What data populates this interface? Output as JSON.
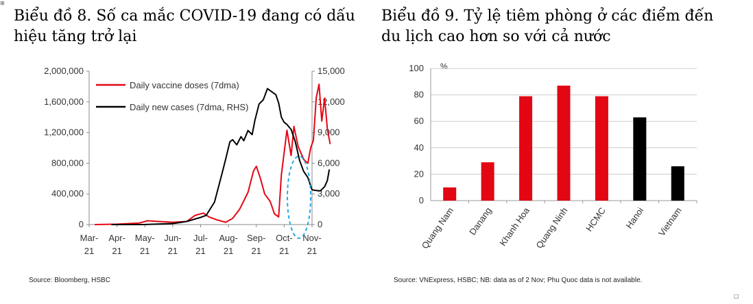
{
  "titles": {
    "left": "Biểu đồ 8. Số ca mắc COVID-19 đang có dấu\nhiệu tăng trở lại",
    "right": "Biểu đồ 9. Tỷ lệ tiêm phòng ở các điểm đến\ndu lịch cao hơn so với cả nước"
  },
  "corner_marks": {
    "top_left": "⊞",
    "bottom_right": "□"
  },
  "colors": {
    "vaccine": "#e30613",
    "cases": "#000000",
    "highlight": "#29a8e0",
    "bar_red": "#e30613",
    "bar_black": "#000000",
    "grid": "#cccccc"
  },
  "chart_data": [
    {
      "type": "line",
      "title": "",
      "x_ticks": [
        "Mar-\n21",
        "Apr-\n21",
        "May-\n21",
        "Jun-\n21",
        "Jul-\n21",
        "Aug-\n21",
        "Sep-\n21",
        "Oct-\n21",
        "Nov-\n21"
      ],
      "y_left": {
        "min": 0,
        "max": 2000000,
        "ticks": [
          "2,000,000",
          "1,600,000",
          "1,200,000",
          "800,000",
          "400,000",
          "0"
        ]
      },
      "y_right": {
        "min": 0,
        "max": 15000,
        "ticks": [
          "15,000",
          "12,000",
          "9,000",
          "6,000",
          "3,000",
          "0"
        ]
      },
      "legend": {
        "placement": "top-left",
        "entries": [
          "Daily vaccine doses (7dma)",
          "Daily new cases (7dma, RHS)"
        ]
      },
      "series": [
        {
          "name": "Daily vaccine doses (7dma)",
          "axis": "left",
          "points": [
            [
              0.2,
              0
            ],
            [
              1.0,
              5000
            ],
            [
              1.8,
              20000
            ],
            [
              2.1,
              50000
            ],
            [
              2.5,
              40000
            ],
            [
              3.0,
              30000
            ],
            [
              3.5,
              40000
            ],
            [
              3.8,
              120000
            ],
            [
              4.1,
              150000
            ],
            [
              4.3,
              100000
            ],
            [
              4.6,
              60000
            ],
            [
              4.9,
              30000
            ],
            [
              5.15,
              80000
            ],
            [
              5.4,
              200000
            ],
            [
              5.7,
              420000
            ],
            [
              5.9,
              700000
            ],
            [
              6.0,
              760000
            ],
            [
              6.15,
              600000
            ],
            [
              6.3,
              400000
            ],
            [
              6.5,
              300000
            ],
            [
              6.65,
              140000
            ],
            [
              6.8,
              100000
            ],
            [
              6.9,
              650000
            ],
            [
              7.1,
              1230000
            ],
            [
              7.25,
              900000
            ],
            [
              7.35,
              1280000
            ],
            [
              7.5,
              1020000
            ],
            [
              7.7,
              850000
            ],
            [
              7.85,
              800000
            ],
            [
              7.95,
              1000000
            ],
            [
              8.05,
              1100000
            ],
            [
              8.15,
              1650000
            ],
            [
              8.25,
              1830000
            ],
            [
              8.35,
              1350000
            ],
            [
              8.45,
              1650000
            ],
            [
              8.55,
              1250000
            ],
            [
              8.65,
              1050000
            ]
          ]
        },
        {
          "name": "Daily new cases (7dma, RHS)",
          "axis": "right",
          "points": [
            [
              0.8,
              0
            ],
            [
              2.0,
              10
            ],
            [
              3.0,
              100
            ],
            [
              3.5,
              300
            ],
            [
              4.0,
              700
            ],
            [
              4.2,
              900
            ],
            [
              4.5,
              2200
            ],
            [
              4.75,
              4800
            ],
            [
              4.9,
              6400
            ],
            [
              5.05,
              8100
            ],
            [
              5.15,
              8300
            ],
            [
              5.3,
              7800
            ],
            [
              5.45,
              8600
            ],
            [
              5.55,
              8200
            ],
            [
              5.7,
              9200
            ],
            [
              5.85,
              8800
            ],
            [
              5.95,
              10200
            ],
            [
              6.1,
              11800
            ],
            [
              6.25,
              12200
            ],
            [
              6.4,
              13300
            ],
            [
              6.55,
              13000
            ],
            [
              6.7,
              12700
            ],
            [
              6.8,
              11900
            ],
            [
              6.9,
              10500
            ],
            [
              7.0,
              10000
            ],
            [
              7.1,
              9800
            ],
            [
              7.25,
              9300
            ],
            [
              7.4,
              8100
            ],
            [
              7.55,
              6300
            ],
            [
              7.7,
              5200
            ],
            [
              7.85,
              4600
            ],
            [
              8.0,
              3400
            ],
            [
              8.1,
              3350
            ],
            [
              8.3,
              3300
            ],
            [
              8.45,
              3700
            ],
            [
              8.55,
              4300
            ],
            [
              8.62,
              5400
            ]
          ]
        }
      ]
    },
    {
      "type": "bar",
      "title": "",
      "ylabel": "%",
      "ylim": [
        0,
        100
      ],
      "y_ticks": [
        "100",
        "80",
        "60",
        "40",
        "20",
        "0"
      ],
      "categories": [
        "Quang Nam",
        "Danang",
        "Khanh Hoa",
        "Quang Ninh",
        "HCMC",
        "Hanoi",
        "Vietnam"
      ],
      "values": [
        10,
        29,
        79,
        87,
        79,
        63,
        26
      ],
      "bar_colors": [
        "red",
        "red",
        "red",
        "red",
        "red",
        "black",
        "black"
      ]
    }
  ],
  "sources": {
    "left": "Source: Bloomberg, HSBC",
    "right": "Source: VNExpress, HSBC; NB: data as of 2 Nov; Phu Quoc data is not available."
  }
}
